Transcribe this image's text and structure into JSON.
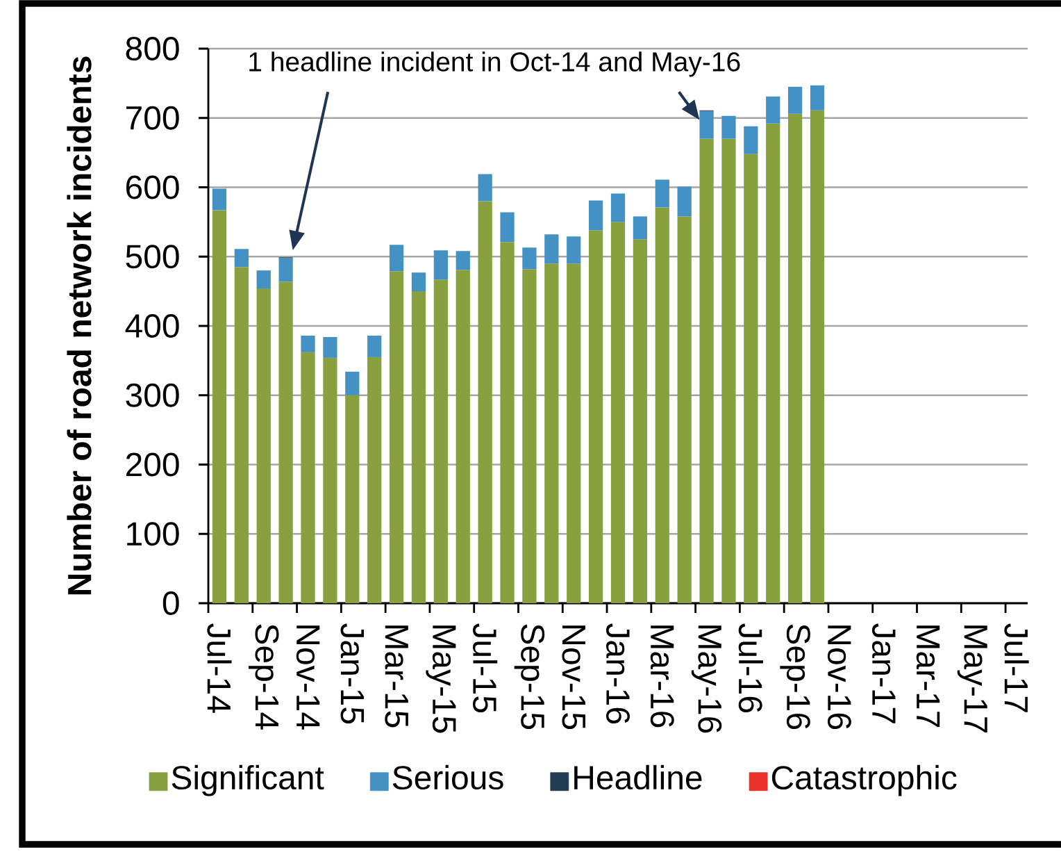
{
  "chart_data": {
    "type": "bar",
    "stacked": true,
    "ylabel": "Number of road network incidents",
    "annotations": [
      "1 headline incident in Oct-14 and May-16"
    ],
    "categories": [
      "Jul-14",
      null,
      "Sep-14",
      null,
      "Nov-14",
      null,
      "Jan-15",
      null,
      "Mar-15",
      null,
      "May-15",
      null,
      "Jul-15",
      null,
      "Sep-15",
      null,
      "Nov-15",
      null,
      "Jan-16",
      null,
      "Mar-16",
      null,
      "May-16",
      null,
      "Jul-16",
      null,
      "Sep-16",
      null,
      "Nov-16",
      null,
      "Jan-17",
      null,
      "Mar-17",
      null,
      "May-17",
      null,
      "Jul-17"
    ],
    "series": [
      {
        "name": "Significant",
        "color": "#89a03e",
        "values": [
          567,
          485,
          454,
          464,
          362,
          354,
          300,
          355,
          479,
          450,
          467,
          481,
          580,
          521,
          482,
          490,
          490,
          538,
          550,
          525,
          571,
          558,
          670,
          670,
          648,
          692,
          706,
          711,
          null,
          null,
          null,
          null,
          null,
          null,
          null,
          null,
          null
        ]
      },
      {
        "name": "Serious",
        "color": "#4492c4",
        "values": [
          31,
          26,
          26,
          34,
          24,
          30,
          34,
          31,
          38,
          27,
          42,
          27,
          39,
          43,
          31,
          42,
          39,
          43,
          41,
          33,
          40,
          43,
          40,
          33,
          40,
          39,
          39,
          36,
          null,
          null,
          null,
          null,
          null,
          null,
          null,
          null,
          null
        ]
      },
      {
        "name": "Headline",
        "color": "#243b55",
        "values": [
          0,
          0,
          0,
          1,
          0,
          0,
          0,
          0,
          0,
          0,
          0,
          0,
          0,
          0,
          0,
          0,
          0,
          0,
          0,
          0,
          0,
          0,
          1,
          0,
          0,
          0,
          0,
          0,
          null,
          null,
          null,
          null,
          null,
          null,
          null,
          null,
          null
        ]
      },
      {
        "name": "Catastrophic",
        "color": "#e8302a",
        "values": [
          0,
          0,
          0,
          0,
          0,
          0,
          0,
          0,
          0,
          0,
          0,
          0,
          0,
          0,
          0,
          0,
          0,
          0,
          0,
          0,
          0,
          0,
          0,
          0,
          0,
          0,
          0,
          0,
          null,
          null,
          null,
          null,
          null,
          null,
          null,
          null,
          null
        ]
      }
    ],
    "ylim": [
      0,
      800
    ],
    "yticks": [
      0,
      100,
      200,
      300,
      400,
      500,
      600,
      700,
      800
    ],
    "grid": "y",
    "legend": "bottom"
  }
}
